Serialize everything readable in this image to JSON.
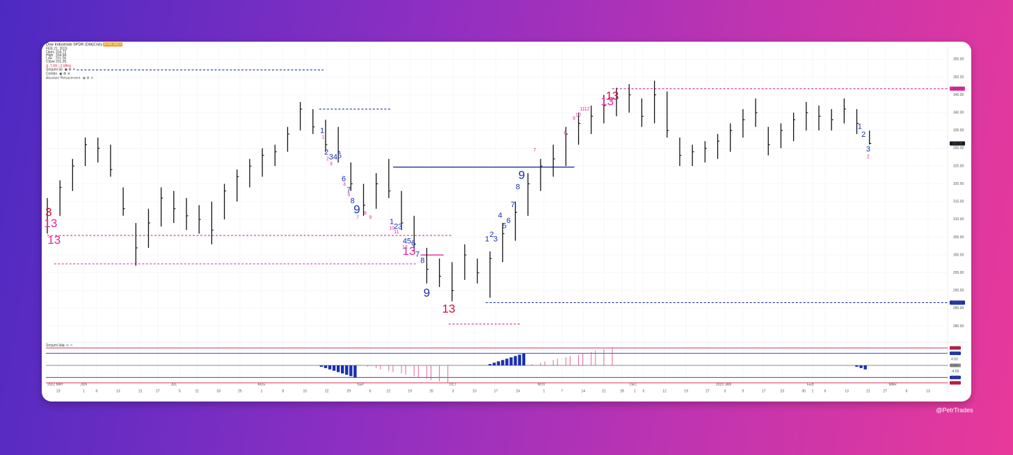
{
  "chart_data": {
    "type": "ohlc",
    "title": "Dow Industrials SPDR (DIA)",
    "interval": "Daily",
    "exchange": "NYSE ARCA",
    "legend_date": "FEB 21, 2023",
    "legend_fields": [
      "Open",
      "High",
      "Low",
      "Close"
    ],
    "open": 334.72,
    "change": "Δ -7.09 (-2.09%)",
    "indicators": [
      "Sequential",
      "Combo",
      "Absolute Retracement"
    ],
    "bar_color": "#111111",
    "grid": true,
    "x": [
      0,
      3,
      6,
      9,
      12,
      15,
      18,
      21,
      24,
      27,
      30,
      33,
      36,
      39,
      42,
      45,
      48,
      51,
      54,
      57,
      60,
      63,
      66,
      69,
      72,
      75,
      78,
      81,
      84,
      87,
      90,
      93,
      96,
      99,
      102,
      105,
      108,
      111,
      114,
      117,
      120,
      123,
      126,
      129,
      132,
      135,
      138,
      141,
      144,
      147,
      150,
      153,
      156,
      159,
      162,
      165,
      168,
      171,
      174,
      177,
      180,
      183,
      186,
      189,
      192,
      195
    ],
    "high": [
      316,
      321,
      327,
      333,
      333,
      331,
      319,
      309,
      313,
      319,
      318,
      316,
      314,
      315,
      320,
      324,
      327,
      330,
      331,
      336,
      343,
      341,
      338,
      336,
      326,
      320,
      323,
      327,
      318,
      311,
      302,
      299,
      298,
      303,
      299,
      301,
      309,
      315,
      323,
      327,
      331,
      336,
      340,
      342,
      345,
      347,
      348,
      344,
      349,
      346,
      333,
      331,
      332,
      334,
      337,
      341,
      344,
      336,
      337,
      340,
      343,
      342,
      341,
      344,
      341,
      334.94
    ],
    "low": [
      306,
      311,
      318,
      325,
      326,
      322,
      311,
      297,
      302,
      308,
      309,
      307,
      306,
      303,
      310,
      315,
      319,
      322,
      325,
      329,
      335,
      334,
      329,
      326,
      318,
      311,
      313,
      316,
      307,
      301,
      292,
      291,
      287,
      293,
      292,
      288,
      298,
      304,
      311,
      318,
      322,
      325,
      331,
      334,
      337,
      339,
      340,
      336,
      337,
      333,
      325,
      325,
      326,
      327,
      329,
      333,
      336,
      328,
      330,
      332,
      335,
      335,
      335,
      337,
      334,
      331.05
    ],
    "close": [
      313,
      319,
      325,
      331,
      330,
      324,
      313,
      302,
      309,
      316,
      313,
      311,
      310,
      307,
      318,
      322,
      325,
      328,
      329,
      334,
      341,
      336,
      331,
      329,
      320,
      314,
      320,
      318,
      309,
      303,
      296,
      294,
      290,
      300,
      295,
      299,
      306,
      312,
      320,
      325,
      327,
      334,
      337,
      339,
      342,
      344,
      345,
      339,
      345,
      335,
      328,
      329,
      330,
      332,
      335,
      338,
      340,
      331,
      335,
      338,
      340,
      339,
      338,
      341,
      337,
      331.35
    ],
    "xlim": [
      0,
      213
    ],
    "ylim": [
      276,
      358
    ],
    "yticks": [
      {
        "value": 280,
        "label": "280.00"
      },
      {
        "value": 285,
        "label": "285.00"
      },
      {
        "value": 290,
        "label": "290.00"
      },
      {
        "value": 295,
        "label": "295.00"
      },
      {
        "value": 300,
        "label": "300.00"
      },
      {
        "value": 305,
        "label": "305.00"
      },
      {
        "value": 310,
        "label": "310.00"
      },
      {
        "value": 315,
        "label": "315.00"
      },
      {
        "value": 320,
        "label": "320.00"
      },
      {
        "value": 325,
        "label": "325.00"
      },
      {
        "value": 330,
        "label": "330.00"
      },
      {
        "value": 335,
        "label": "335.00"
      },
      {
        "value": 340,
        "label": "340.00"
      },
      {
        "value": 345,
        "label": "345.00"
      },
      {
        "value": 350,
        "label": "350.00"
      },
      {
        "value": 355,
        "label": "355.00"
      }
    ],
    "last_tag_color": "#131722",
    "levels": [
      {
        "value": 352,
        "color": "#1a2fb0",
        "dashed": true,
        "from": 7,
        "to": 65.5,
        "tag": false
      },
      {
        "value": 341,
        "color": "#1a2fb0",
        "dashed": true,
        "from": 64.5,
        "to": 81.5,
        "tag": false
      },
      {
        "value": 324.7,
        "color": "#1a2fb0",
        "dashed": false,
        "from": 82,
        "to": 125,
        "tag": false
      },
      {
        "value": 305.5,
        "color": "#e0289e",
        "dashed": true,
        "from": 0,
        "to": 96,
        "tag": false
      },
      {
        "value": 297.5,
        "color": "#e0289e",
        "dashed": true,
        "from": 1.6,
        "to": 87.8,
        "tag": false
      },
      {
        "value": 300,
        "color": "#e0289e",
        "dashed": false,
        "from": 88.5,
        "to": 94,
        "tag": false
      },
      {
        "value": 280.6,
        "color": "#e0289e",
        "dashed": true,
        "from": 95.2,
        "to": 112.2,
        "tag": false
      },
      {
        "value": 346.74,
        "color": "#e0289e",
        "dashed": true,
        "from": 134,
        "to": 194.7,
        "tag": true
      },
      {
        "value": 286.62,
        "color": "#1a2fb0",
        "dashed": true,
        "from": 104,
        "to": 194.7,
        "tag": true
      }
    ],
    "annotations": [
      {
        "text": "3",
        "x": 0.3,
        "y": 311.8,
        "color": "#d0103a",
        "size": "large"
      },
      {
        "text": "13",
        "x": 0.8,
        "y": 308.7,
        "color": "#e0289e",
        "size": "large"
      },
      {
        "text": "13",
        "x": 1.6,
        "y": 304,
        "color": "#e0289e",
        "size": "large"
      },
      {
        "text": "1",
        "x": 65.2,
        "y": 334.8,
        "color": "#1a2fb0",
        "size": "small"
      },
      {
        "text": "2",
        "x": 66.2,
        "y": 328.8,
        "color": "#1a2fb0",
        "size": "small"
      },
      {
        "text": "3",
        "x": 67.3,
        "y": 327.4,
        "color": "#1a2fb0",
        "size": "small"
      },
      {
        "text": "4",
        "x": 68.3,
        "y": 327.4,
        "color": "#1a2fb0",
        "size": "small"
      },
      {
        "text": "5",
        "x": 69.3,
        "y": 327.8,
        "color": "#1a2fb0",
        "size": "small"
      },
      {
        "text": "6",
        "x": 70.3,
        "y": 321.3,
        "color": "#1a2fb0",
        "size": "small"
      },
      {
        "text": "7",
        "x": 71.5,
        "y": 318.2,
        "color": "#1a2fb0",
        "size": "small"
      },
      {
        "text": "8",
        "x": 72.4,
        "y": 315.1,
        "color": "#1a2fb0",
        "size": "small"
      },
      {
        "text": "9",
        "x": 73.4,
        "y": 312.6,
        "color": "#1a2fb0",
        "size": "large"
      },
      {
        "text": "1",
        "x": 65.4,
        "y": 333.1,
        "color": "#e0289e",
        "size": "tiny"
      },
      {
        "text": "2",
        "x": 66.5,
        "y": 327,
        "color": "#e0289e",
        "size": "tiny"
      },
      {
        "text": "3",
        "x": 67.3,
        "y": 325.6,
        "color": "#e0289e",
        "size": "tiny"
      },
      {
        "text": "4",
        "x": 70.5,
        "y": 319.8,
        "color": "#e0289e",
        "size": "tiny"
      },
      {
        "text": "5",
        "x": 71.5,
        "y": 316.9,
        "color": "#e0289e",
        "size": "tiny"
      },
      {
        "text": "7",
        "x": 73.6,
        "y": 310.5,
        "color": "#e0289e",
        "size": "tiny"
      },
      {
        "text": "8",
        "x": 75.4,
        "y": 311.7,
        "color": "#e0289e",
        "size": "tiny"
      },
      {
        "text": "9",
        "x": 76.6,
        "y": 310.5,
        "color": "#e0289e",
        "size": "tiny"
      },
      {
        "text": "1",
        "x": 81.7,
        "y": 309.3,
        "color": "#1a2fb0",
        "size": "small"
      },
      {
        "text": "2",
        "x": 82.7,
        "y": 307.9,
        "color": "#1a2fb0",
        "size": "small"
      },
      {
        "text": "3",
        "x": 83.7,
        "y": 307.9,
        "color": "#1a2fb0",
        "size": "small"
      },
      {
        "text": "4",
        "x": 84.8,
        "y": 303.8,
        "color": "#1a2fb0",
        "size": "small"
      },
      {
        "text": "5",
        "x": 85.8,
        "y": 303.8,
        "color": "#1a2fb0",
        "size": "small"
      },
      {
        "text": "6",
        "x": 86.8,
        "y": 303.2,
        "color": "#1a2fb0",
        "size": "small"
      },
      {
        "text": "7",
        "x": 87.8,
        "y": 300.1,
        "color": "#1a2fb0",
        "size": "small"
      },
      {
        "text": "8",
        "x": 89,
        "y": 298.3,
        "color": "#1a2fb0",
        "size": "small"
      },
      {
        "text": "9",
        "x": 90,
        "y": 289.2,
        "color": "#1a2fb0",
        "size": "large"
      },
      {
        "text": "10",
        "x": 81.7,
        "y": 307.5,
        "color": "#e0289e",
        "size": "tiny"
      },
      {
        "text": "11",
        "x": 82.8,
        "y": 306.4,
        "color": "#e0289e",
        "size": "tiny"
      },
      {
        "text": "12",
        "x": 84.8,
        "y": 302.1,
        "color": "#e0289e",
        "size": "tiny"
      },
      {
        "text": "13",
        "x": 85.8,
        "y": 300.9,
        "color": "#e0289e",
        "size": "large"
      },
      {
        "text": "13",
        "x": 95.2,
        "y": 284.7,
        "color": "#d0103a",
        "size": "large"
      },
      {
        "text": "1",
        "x": 104.3,
        "y": 304.4,
        "color": "#1a2fb0",
        "size": "small"
      },
      {
        "text": "2",
        "x": 105.4,
        "y": 305.7,
        "color": "#1a2fb0",
        "size": "small"
      },
      {
        "text": "3",
        "x": 106.3,
        "y": 304.4,
        "color": "#1a2fb0",
        "size": "small"
      },
      {
        "text": "4",
        "x": 107.4,
        "y": 311,
        "color": "#1a2fb0",
        "size": "small"
      },
      {
        "text": "5",
        "x": 108.4,
        "y": 308.1,
        "color": "#1a2fb0",
        "size": "small"
      },
      {
        "text": "6",
        "x": 109.4,
        "y": 309.6,
        "color": "#1a2fb0",
        "size": "small"
      },
      {
        "text": "7",
        "x": 110.4,
        "y": 314.1,
        "color": "#1a2fb0",
        "size": "small"
      },
      {
        "text": "8",
        "x": 111.6,
        "y": 319,
        "color": "#1a2fb0",
        "size": "small"
      },
      {
        "text": "9",
        "x": 112.5,
        "y": 322.3,
        "color": "#1a2fb0",
        "size": "large"
      },
      {
        "text": "7",
        "x": 115.6,
        "y": 329.5,
        "color": "#e0289e",
        "size": "tiny"
      },
      {
        "text": "8",
        "x": 122.8,
        "y": 334.2,
        "color": "#e0289e",
        "size": "tiny"
      },
      {
        "text": "9",
        "x": 124.9,
        "y": 338.3,
        "color": "#e0289e",
        "size": "tiny"
      },
      {
        "text": "10",
        "x": 125.9,
        "y": 339.3,
        "color": "#e0289e",
        "size": "tiny"
      },
      {
        "text": "11",
        "x": 126.9,
        "y": 341,
        "color": "#e0289e",
        "size": "tiny"
      },
      {
        "text": "12",
        "x": 128,
        "y": 341,
        "color": "#e0289e",
        "size": "tiny"
      },
      {
        "text": "13",
        "x": 132.8,
        "y": 343,
        "color": "#e0289e",
        "size": "large"
      },
      {
        "text": "13",
        "x": 134,
        "y": 344.5,
        "color": "#d0103a",
        "size": "large"
      },
      {
        "text": "1",
        "x": 192.7,
        "y": 336,
        "color": "#1a2fb0",
        "size": "small"
      },
      {
        "text": "2",
        "x": 193.6,
        "y": 333.8,
        "color": "#1a2fb0",
        "size": "small"
      },
      {
        "text": "3",
        "x": 194.7,
        "y": 329.7,
        "color": "#1a2fb0",
        "size": "small"
      },
      {
        "text": "2",
        "x": 194.7,
        "y": 327.6,
        "color": "#e0289e",
        "size": "tiny"
      }
    ],
    "month_ticks": [
      {
        "value": 0,
        "label": "2022 MAY"
      },
      {
        "value": 8.6,
        "label": "JUN"
      },
      {
        "value": 30,
        "label": "JUL"
      },
      {
        "value": 50.8,
        "label": "AUG"
      },
      {
        "value": 74.3,
        "label": "SEP"
      },
      {
        "value": 96.2,
        "label": "OCT"
      },
      {
        "value": 117.2,
        "label": "NOV"
      },
      {
        "value": 139,
        "label": "DEC"
      },
      {
        "value": 160.4,
        "label": "2023 JAN"
      },
      {
        "value": 181,
        "label": "FEB"
      },
      {
        "value": 200.5,
        "label": "MAR"
      }
    ],
    "day_ticks": [
      {
        "value": 2.6,
        "label": "23"
      },
      {
        "value": 8.6,
        "label": "1"
      },
      {
        "value": 11.7,
        "label": "6"
      },
      {
        "value": 16.8,
        "label": "13"
      },
      {
        "value": 22.1,
        "label": "21"
      },
      {
        "value": 26.2,
        "label": "27"
      },
      {
        "value": 31.4,
        "label": "5"
      },
      {
        "value": 35.5,
        "label": "11"
      },
      {
        "value": 40.6,
        "label": "18"
      },
      {
        "value": 45.7,
        "label": "25"
      },
      {
        "value": 50.8,
        "label": "1"
      },
      {
        "value": 55.9,
        "label": "8"
      },
      {
        "value": 61.1,
        "label": "15"
      },
      {
        "value": 66.3,
        "label": "22"
      },
      {
        "value": 71.5,
        "label": "29"
      },
      {
        "value": 76.6,
        "label": "6"
      },
      {
        "value": 80.9,
        "label": "12"
      },
      {
        "value": 86,
        "label": "19"
      },
      {
        "value": 91.1,
        "label": "26"
      },
      {
        "value": 96.2,
        "label": "3"
      },
      {
        "value": 101.3,
        "label": "10"
      },
      {
        "value": 106.4,
        "label": "17"
      },
      {
        "value": 111.6,
        "label": "24"
      },
      {
        "value": 117.8,
        "label": "1"
      },
      {
        "value": 122.1,
        "label": "7"
      },
      {
        "value": 127.1,
        "label": "14"
      },
      {
        "value": 132,
        "label": "21"
      },
      {
        "value": 136.3,
        "label": "28"
      },
      {
        "value": 139.3,
        "label": "1"
      },
      {
        "value": 141.4,
        "label": "5"
      },
      {
        "value": 146.4,
        "label": "12"
      },
      {
        "value": 151.5,
        "label": "19"
      },
      {
        "value": 156.6,
        "label": "27"
      },
      {
        "value": 160.7,
        "label": "3"
      },
      {
        "value": 165,
        "label": "9"
      },
      {
        "value": 169.9,
        "label": "17"
      },
      {
        "value": 174.3,
        "label": "23"
      },
      {
        "value": 179.4,
        "label": "30"
      },
      {
        "value": 181.5,
        "label": "1"
      },
      {
        "value": 184.5,
        "label": "6"
      },
      {
        "value": 189.6,
        "label": "13"
      },
      {
        "value": 194.7,
        "label": "21"
      },
      {
        "value": 198.7,
        "label": "27"
      },
      {
        "value": 203.8,
        "label": "6"
      },
      {
        "value": 208.9,
        "label": "13"
      }
    ],
    "lower": {
      "title": "Sequential",
      "ylim": [
        -14,
        14
      ],
      "yticks": [
        {
          "value": 13,
          "label": "13.00"
        },
        {
          "value": 9,
          "label": "9.00"
        },
        {
          "value": 4.5,
          "label": "4.50"
        },
        {
          "value": 0,
          "label": "0.00"
        },
        {
          "value": -4.5,
          "label": "-4.50"
        },
        {
          "value": -9,
          "label": "-9.00"
        },
        {
          "value": -13,
          "label": "-13.00"
        }
      ],
      "levels": [
        {
          "value": 13,
          "color": "#d0103a"
        },
        {
          "value": 9,
          "color": "#1a2fb0"
        },
        {
          "value": 0,
          "color": "#888888"
        },
        {
          "value": -9,
          "color": "#1a2fb0"
        },
        {
          "value": -13,
          "color": "#d0103a"
        }
      ],
      "series": [
        {
          "color": "#1a2fb0",
          "fill": true,
          "x": [
            65,
            66,
            67,
            68,
            69,
            70,
            71,
            72,
            73
          ],
          "values": [
            -1,
            -2,
            -3,
            -4,
            -5,
            -6,
            -7,
            -8,
            -9
          ]
        },
        {
          "color": "#e0508e",
          "fill": false,
          "x": [
            76,
            78,
            79,
            81,
            82,
            84,
            85,
            87,
            88,
            90,
            91,
            93,
            95
          ],
          "values": [
            -1,
            -2,
            -3,
            -4,
            -5,
            -6,
            -7,
            -8,
            -9,
            -10,
            -11,
            -12,
            -13
          ]
        },
        {
          "color": "#1a2fb0",
          "fill": true,
          "x": [
            105,
            106,
            107,
            108,
            109,
            110,
            111,
            112,
            113
          ],
          "values": [
            1,
            2,
            3,
            4,
            5,
            6,
            7,
            8,
            9
          ]
        },
        {
          "color": "#e0508e",
          "fill": false,
          "x": [
            115,
            117,
            118,
            120,
            121,
            123,
            124,
            126,
            127,
            129,
            130,
            132,
            134
          ],
          "values": [
            1,
            2,
            3,
            4,
            5,
            6,
            7,
            8,
            9,
            10,
            11,
            12,
            13
          ]
        },
        {
          "color": "#1a2fb0",
          "fill": true,
          "x": [
            192,
            193,
            194
          ],
          "values": [
            -1,
            -2,
            -3
          ]
        }
      ]
    },
    "watermark": "@PetrTrades"
  }
}
